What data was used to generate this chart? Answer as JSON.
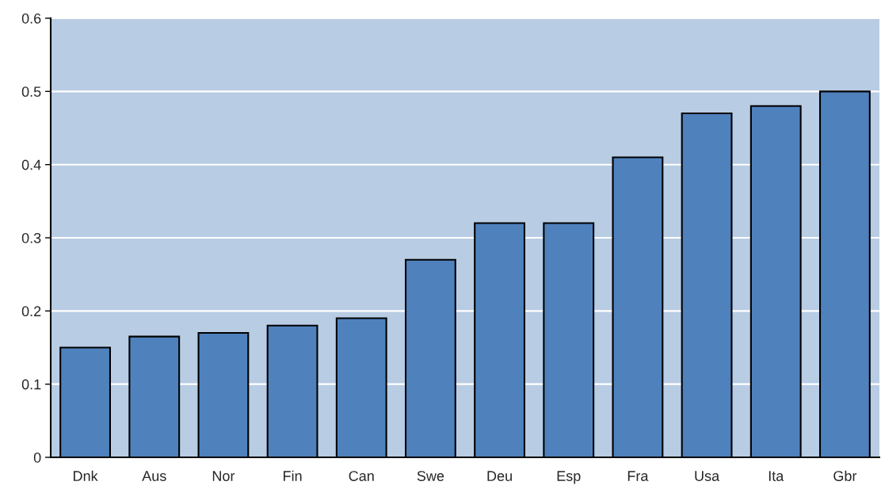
{
  "chart_data": {
    "type": "bar",
    "categories": [
      "Dnk",
      "Aus",
      "Nor",
      "Fin",
      "Can",
      "Swe",
      "Deu",
      "Esp",
      "Fra",
      "Usa",
      "Ita",
      "Gbr"
    ],
    "values": [
      0.15,
      0.165,
      0.17,
      0.18,
      0.19,
      0.27,
      0.32,
      0.32,
      0.41,
      0.47,
      0.48,
      0.5
    ],
    "color": "#4f81bd",
    "ylim": [
      0,
      0.6
    ],
    "yticks": [
      0,
      0.1,
      0.2,
      0.3,
      0.4,
      0.5,
      0.6
    ],
    "grid": "y",
    "legend": false
  }
}
